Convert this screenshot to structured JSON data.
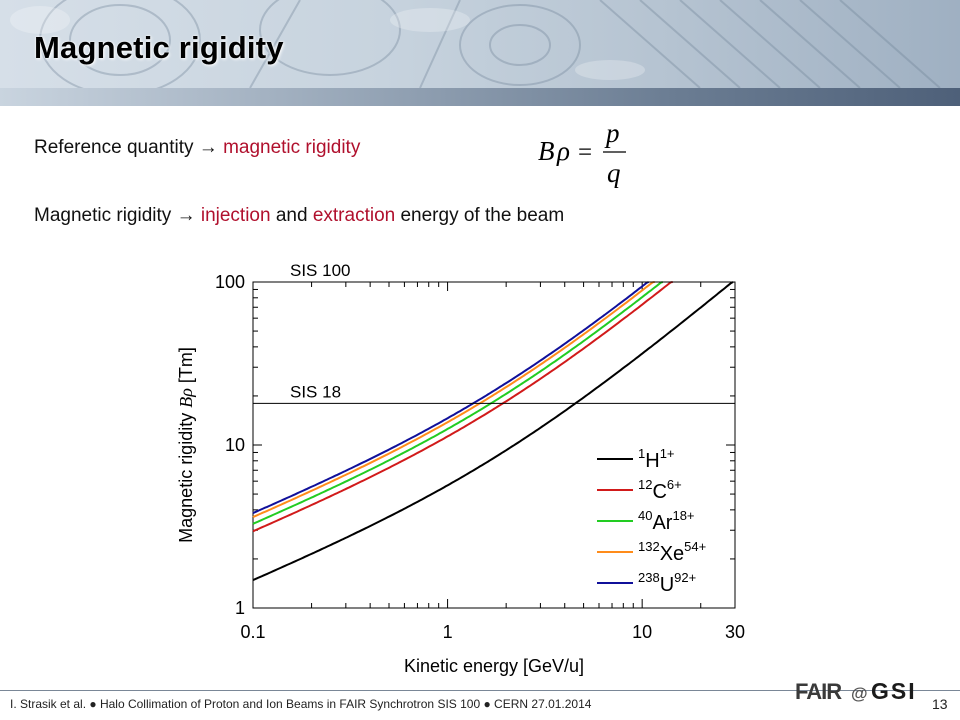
{
  "slide": {
    "title": "Magnetic rigidity",
    "line1": {
      "prefix": "Reference quantity",
      "arrow": "→",
      "highlight": "magnetic rigidity"
    },
    "formula": {
      "lhs_b": "B",
      "lhs_rho": "ρ",
      "eq": "=",
      "num": "p",
      "den": "q"
    },
    "line2": {
      "prefix": "Magnetic rigidity",
      "arrow": "→",
      "word1": "injection",
      "mid": "and",
      "word2": "extraction",
      "suffix": "energy of the beam"
    }
  },
  "footer": {
    "text": "I. Strasik et al.  ●  Halo Collimation of Proton and Ion Beams in FAIR Synchrotron SIS 100  ●  CERN 27.01.2014",
    "page": "13",
    "logo": {
      "fair": "FAIR",
      "at": "@",
      "gsi": "GSI"
    }
  },
  "colors": {
    "accent_red": "#b0102d",
    "h": "#000000",
    "c": "#d11a1a",
    "ar": "#22cc22",
    "xe": "#ff8c1a",
    "u": "#10109a"
  },
  "chart_data": {
    "type": "line",
    "xscale": "log",
    "yscale": "log",
    "xlim": [
      0.1,
      30
    ],
    "ylim": [
      1,
      100
    ],
    "xlabel": "Kinetic energy [GeV/u]",
    "ylabel_prefix": "Magnetic rigidity ",
    "ylabel_sym_b": "B",
    "ylabel_sym_rho": "ρ",
    "ylabel_suffix": " [Tm]",
    "xticks": [
      "0.1",
      "1",
      "10",
      "30"
    ],
    "yticks": [
      "1",
      "10",
      "100"
    ],
    "reference_lines": [
      {
        "name": "SIS 100",
        "value": 100
      },
      {
        "name": "SIS 18",
        "value": 18
      }
    ],
    "series": [
      {
        "key": "h",
        "mass": "1",
        "element": "H",
        "charge": "1+",
        "A": 1,
        "Z": 1,
        "color": "#000000"
      },
      {
        "key": "c",
        "mass": "12",
        "element": "C",
        "charge": "6+",
        "A": 12,
        "Z": 6,
        "color": "#d11a1a"
      },
      {
        "key": "ar",
        "mass": "40",
        "element": "Ar",
        "charge": "18+",
        "A": 40,
        "Z": 18,
        "color": "#22cc22"
      },
      {
        "key": "xe",
        "mass": "132",
        "element": "Xe",
        "charge": "54+",
        "A": 132,
        "Z": 54,
        "color": "#ff8c1a"
      },
      {
        "key": "u",
        "mass": "238",
        "element": "U",
        "charge": "92+",
        "A": 238,
        "Z": 92,
        "color": "#10109a"
      }
    ]
  }
}
